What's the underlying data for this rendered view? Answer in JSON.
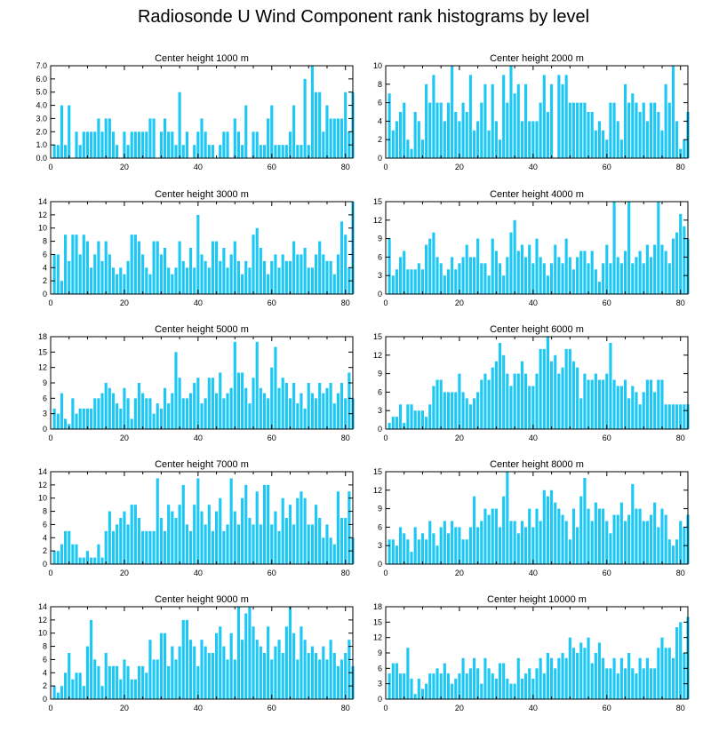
{
  "title": "Radiosonde U Wind Component rank histograms by level",
  "chart_data": [
    {
      "type": "bar",
      "title": "Center height 1000 m",
      "xlim": [
        0,
        82
      ],
      "ylim": [
        0,
        7
      ],
      "xticks": [
        0,
        20,
        40,
        60,
        80
      ],
      "yticks": [
        "0.0",
        "1.0",
        "2.0",
        "3.0",
        "4.0",
        "5.0",
        "6.0",
        "7.0"
      ],
      "values": [
        1,
        1,
        4,
        1,
        4,
        0,
        2,
        1,
        2,
        2,
        2,
        2,
        3,
        2,
        3,
        3,
        2,
        1,
        0,
        2,
        1,
        2,
        2,
        2,
        2,
        2,
        3,
        3,
        0,
        2,
        3,
        2,
        2,
        1,
        5,
        1,
        2,
        0,
        1,
        2,
        3,
        2,
        1,
        1,
        0,
        1,
        2,
        2,
        0,
        3,
        2,
        1,
        4,
        0,
        2,
        2,
        1,
        1,
        3,
        4,
        1,
        1,
        1,
        1,
        2,
        4,
        1,
        1,
        6,
        1,
        7,
        5,
        5,
        2,
        4,
        3,
        3,
        3,
        3,
        5,
        2,
        5
      ]
    },
    {
      "type": "bar",
      "title": "Center height 2000 m",
      "xlim": [
        0,
        82
      ],
      "ylim": [
        0,
        10
      ],
      "xticks": [
        0,
        20,
        40,
        60,
        80
      ],
      "yticks": [
        "0",
        "2",
        "4",
        "6",
        "8",
        "10"
      ],
      "values": [
        7,
        3,
        4,
        5,
        6,
        2,
        1,
        5,
        4,
        2,
        8,
        6,
        9,
        6,
        6,
        4,
        6,
        10,
        5,
        4,
        6,
        5,
        9,
        3,
        4,
        6,
        8,
        3,
        8,
        4,
        2,
        9,
        6,
        10,
        7,
        8,
        4,
        8,
        4,
        4,
        4,
        6,
        9,
        5,
        8,
        0,
        9,
        8,
        9,
        6,
        6,
        6,
        6,
        6,
        5,
        5,
        3,
        4,
        3,
        2,
        6,
        6,
        4,
        2,
        8,
        6,
        7,
        6,
        5,
        6,
        4,
        6,
        6,
        5,
        3,
        8,
        6,
        10,
        4,
        1,
        2,
        5
      ]
    },
    {
      "type": "bar",
      "title": "Center height 3000 m",
      "xlim": [
        0,
        82
      ],
      "ylim": [
        0,
        14
      ],
      "xticks": [
        0,
        20,
        40,
        60,
        80
      ],
      "yticks": [
        "0",
        "2",
        "4",
        "6",
        "8",
        "10",
        "12",
        "14"
      ],
      "values": [
        6,
        6,
        2,
        9,
        5,
        9,
        9,
        6,
        9,
        8,
        4,
        6,
        8,
        5,
        8,
        6,
        4,
        3,
        4,
        3,
        5,
        9,
        9,
        8,
        6,
        4,
        3,
        8,
        8,
        6,
        7,
        4,
        3,
        4,
        8,
        5,
        4,
        7,
        4,
        12,
        6,
        5,
        4,
        8,
        8,
        5,
        7,
        4,
        6,
        8,
        5,
        3,
        5,
        4,
        9,
        10,
        7,
        5,
        3,
        5,
        6,
        4,
        6,
        5,
        5,
        8,
        6,
        6,
        7,
        4,
        4,
        6,
        8,
        6,
        5,
        5,
        3,
        6,
        11,
        9,
        4,
        14
      ]
    },
    {
      "type": "bar",
      "title": "Center height 4000 m",
      "xlim": [
        0,
        82
      ],
      "ylim": [
        0,
        15
      ],
      "xticks": [
        0,
        20,
        40,
        60,
        80
      ],
      "yticks": [
        "0",
        "3",
        "6",
        "9",
        "12",
        "15"
      ],
      "values": [
        9,
        3,
        4,
        6,
        7,
        4,
        4,
        4,
        5,
        4,
        8,
        9,
        10,
        6,
        5,
        3,
        4,
        6,
        4,
        5,
        6,
        8,
        6,
        6,
        9,
        5,
        5,
        3,
        9,
        7,
        5,
        3,
        6,
        10,
        12,
        7,
        8,
        6,
        8,
        5,
        9,
        6,
        5,
        3,
        5,
        8,
        6,
        5,
        9,
        6,
        4,
        6,
        7,
        7,
        5,
        7,
        4,
        2,
        5,
        8,
        5,
        15,
        6,
        5,
        7,
        15,
        5,
        6,
        7,
        5,
        8,
        6,
        8,
        15,
        8,
        7,
        5,
        9,
        10,
        13,
        11,
        9
      ]
    },
    {
      "type": "bar",
      "title": "Center height 5000 m",
      "xlim": [
        0,
        82
      ],
      "ylim": [
        0,
        18
      ],
      "xticks": [
        0,
        20,
        40,
        60,
        80
      ],
      "yticks": [
        "0",
        "3",
        "6",
        "9",
        "12",
        "15",
        "18"
      ],
      "values": [
        4,
        3,
        7,
        2,
        1,
        6,
        3,
        4,
        4,
        4,
        4,
        6,
        6,
        7,
        9,
        8,
        7,
        5,
        4,
        8,
        6,
        2,
        6,
        9,
        7,
        6,
        6,
        3,
        5,
        4,
        8,
        5,
        7,
        15,
        10,
        6,
        6,
        7,
        9,
        10,
        5,
        6,
        10,
        10,
        7,
        11,
        6,
        7,
        8,
        17,
        11,
        11,
        8,
        5,
        10,
        17,
        8,
        7,
        6,
        12,
        16,
        8,
        10,
        9,
        6,
        9,
        5,
        7,
        4,
        9,
        7,
        6,
        9,
        7,
        8,
        9,
        5,
        7,
        9,
        6,
        11,
        6
      ]
    },
    {
      "type": "bar",
      "title": "Center height 6000 m",
      "xlim": [
        0,
        82
      ],
      "ylim": [
        0,
        15
      ],
      "xticks": [
        0,
        20,
        40,
        60,
        80
      ],
      "yticks": [
        "0",
        "3",
        "6",
        "9",
        "12",
        "15"
      ],
      "values": [
        1,
        2,
        2,
        4,
        1,
        4,
        4,
        3,
        3,
        3,
        2,
        4,
        7,
        8,
        8,
        6,
        6,
        6,
        6,
        9,
        6,
        5,
        4,
        5,
        6,
        8,
        9,
        8,
        10,
        11,
        14,
        12,
        9,
        7,
        9,
        9,
        11,
        9,
        7,
        7,
        9,
        13,
        13,
        15,
        11,
        12,
        9,
        10,
        13,
        13,
        11,
        10,
        5,
        9,
        8,
        8,
        9,
        8,
        8,
        9,
        14,
        8,
        7,
        7,
        8,
        5,
        7,
        6,
        4,
        6,
        8,
        8,
        6,
        8,
        8,
        4,
        4,
        4,
        4,
        4,
        4,
        4
      ]
    },
    {
      "type": "bar",
      "title": "Center height 7000 m",
      "xlim": [
        0,
        82
      ],
      "ylim": [
        0,
        14
      ],
      "xticks": [
        0,
        20,
        40,
        60,
        80
      ],
      "yticks": [
        "0",
        "2",
        "4",
        "6",
        "8",
        "10",
        "12",
        "14"
      ],
      "values": [
        2,
        2,
        3,
        5,
        5,
        3,
        3,
        1,
        1,
        2,
        1,
        1,
        3,
        1,
        5,
        8,
        5,
        6,
        7,
        8,
        6,
        9,
        9,
        7,
        5,
        5,
        5,
        5,
        13,
        7,
        5,
        9,
        8,
        7,
        9,
        12,
        6,
        5,
        9,
        13,
        8,
        6,
        9,
        5,
        8,
        10,
        5,
        6,
        13,
        8,
        6,
        10,
        12,
        7,
        6,
        11,
        6,
        12,
        12,
        6,
        8,
        5,
        10,
        7,
        9,
        6,
        10,
        11,
        10,
        6,
        6,
        9,
        7,
        4,
        6,
        4,
        3,
        11,
        7,
        7,
        11,
        4
      ]
    },
    {
      "type": "bar",
      "title": "Center height 8000 m",
      "xlim": [
        0,
        82
      ],
      "ylim": [
        0,
        15
      ],
      "xticks": [
        0,
        20,
        40,
        60,
        80
      ],
      "yticks": [
        "0",
        "3",
        "6",
        "9",
        "12",
        "15"
      ],
      "values": [
        4,
        4,
        3,
        6,
        5,
        4,
        2,
        6,
        4,
        5,
        4,
        7,
        5,
        3,
        6,
        7,
        5,
        7,
        6,
        6,
        4,
        4,
        6,
        11,
        6,
        7,
        9,
        8,
        9,
        9,
        6,
        11,
        15,
        7,
        7,
        5,
        7,
        6,
        9,
        6,
        9,
        7,
        12,
        11,
        12,
        10,
        9,
        8,
        7,
        4,
        9,
        6,
        11,
        14,
        9,
        7,
        10,
        9,
        9,
        7,
        5,
        8,
        8,
        10,
        7,
        8,
        13,
        9,
        9,
        7,
        7,
        8,
        10,
        6,
        9,
        8,
        4,
        3,
        4,
        7,
        6,
        8
      ]
    },
    {
      "type": "bar",
      "title": "Center height 9000 m",
      "xlim": [
        0,
        82
      ],
      "ylim": [
        0,
        14
      ],
      "xticks": [
        0,
        20,
        40,
        60,
        80
      ],
      "yticks": [
        "0",
        "2",
        "4",
        "6",
        "8",
        "10",
        "12",
        "14"
      ],
      "values": [
        2,
        1,
        2,
        4,
        7,
        3,
        4,
        4,
        2,
        8,
        12,
        6,
        5,
        2,
        7,
        5,
        5,
        5,
        3,
        6,
        5,
        3,
        3,
        5,
        5,
        4,
        9,
        6,
        6,
        10,
        10,
        5,
        8,
        6,
        8,
        12,
        12,
        9,
        8,
        5,
        9,
        8,
        7,
        7,
        10,
        11,
        8,
        6,
        10,
        6,
        14,
        9,
        13,
        14,
        11,
        9,
        8,
        7,
        11,
        6,
        8,
        9,
        7,
        11,
        14,
        10,
        6,
        11,
        9,
        7,
        8,
        7,
        6,
        8,
        6,
        9,
        7,
        5,
        6,
        7,
        9,
        5
      ]
    },
    {
      "type": "bar",
      "title": "Center height 10000 m",
      "xlim": [
        0,
        82
      ],
      "ylim": [
        0,
        18
      ],
      "xticks": [
        0,
        20,
        40,
        60,
        80
      ],
      "yticks": [
        "0",
        "3",
        "6",
        "9",
        "12",
        "15",
        "18"
      ],
      "values": [
        5,
        7,
        7,
        5,
        5,
        10,
        4,
        1,
        4,
        2,
        3,
        5,
        5,
        6,
        5,
        7,
        5,
        3,
        4,
        5,
        8,
        5,
        6,
        8,
        6,
        3,
        8,
        6,
        5,
        4,
        7,
        7,
        4,
        3,
        3,
        8,
        4,
        5,
        6,
        4,
        6,
        8,
        5,
        9,
        8,
        6,
        8,
        9,
        8,
        12,
        10,
        9,
        11,
        10,
        12,
        7,
        9,
        11,
        8,
        6,
        6,
        8,
        5,
        8,
        6,
        9,
        6,
        5,
        8,
        6,
        8,
        6,
        6,
        10,
        12,
        10,
        10,
        8,
        14,
        15,
        9,
        16
      ]
    }
  ]
}
